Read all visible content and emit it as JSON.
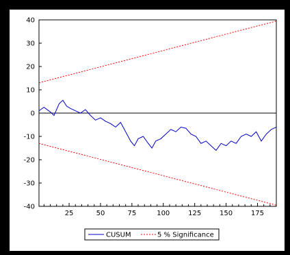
{
  "chart_data": {
    "type": "line",
    "xlim": [
      1,
      190
    ],
    "ylim": [
      -40,
      40
    ],
    "x_ticks": [
      25,
      50,
      75,
      100,
      125,
      150,
      175
    ],
    "y_ticks": [
      40,
      30,
      20,
      10,
      0,
      -10,
      -20,
      -30,
      -40
    ],
    "grid": false,
    "legend_position": "bottom-center",
    "series": [
      {
        "name": "CUSUM",
        "color": "#0000cc",
        "style": "solid",
        "x": [
          1,
          5,
          10,
          13,
          17,
          20,
          23,
          26,
          30,
          34,
          38,
          42,
          46,
          50,
          54,
          58,
          62,
          66,
          70,
          74,
          77,
          80,
          84,
          88,
          91,
          94,
          98,
          102,
          106,
          110,
          114,
          118,
          122,
          126,
          130,
          134,
          138,
          142,
          146,
          150,
          154,
          158,
          162,
          166,
          170,
          174,
          178,
          182,
          186,
          190
        ],
        "y": [
          1,
          2.5,
          0.5,
          -1,
          4,
          5.5,
          3,
          2,
          1,
          0,
          1.5,
          -1,
          -3,
          -2,
          -3.5,
          -4.5,
          -6,
          -4,
          -8,
          -12,
          -14,
          -11,
          -10,
          -13,
          -15,
          -12,
          -11,
          -9,
          -7,
          -8,
          -6,
          -6.5,
          -9,
          -10,
          -13,
          -12,
          -14,
          -16,
          -13,
          -14,
          -12,
          -13,
          -10,
          -9,
          -10,
          -8,
          -12,
          -9,
          -7,
          -6
        ]
      },
      {
        "name": "5 % Significance",
        "color": "#ff0000",
        "style": "dashed",
        "x": [
          1,
          190
        ],
        "y": [
          13,
          39.5
        ]
      },
      {
        "name": "5 % Significance",
        "color": "#ff0000",
        "style": "dashed",
        "x": [
          1,
          190
        ],
        "y": [
          -13,
          -39.5
        ]
      }
    ],
    "legend": [
      {
        "label": "CUSUM",
        "color": "#0000cc",
        "style": "solid"
      },
      {
        "label": "5 % Significance",
        "color": "#ff0000",
        "style": "dashed"
      }
    ]
  }
}
